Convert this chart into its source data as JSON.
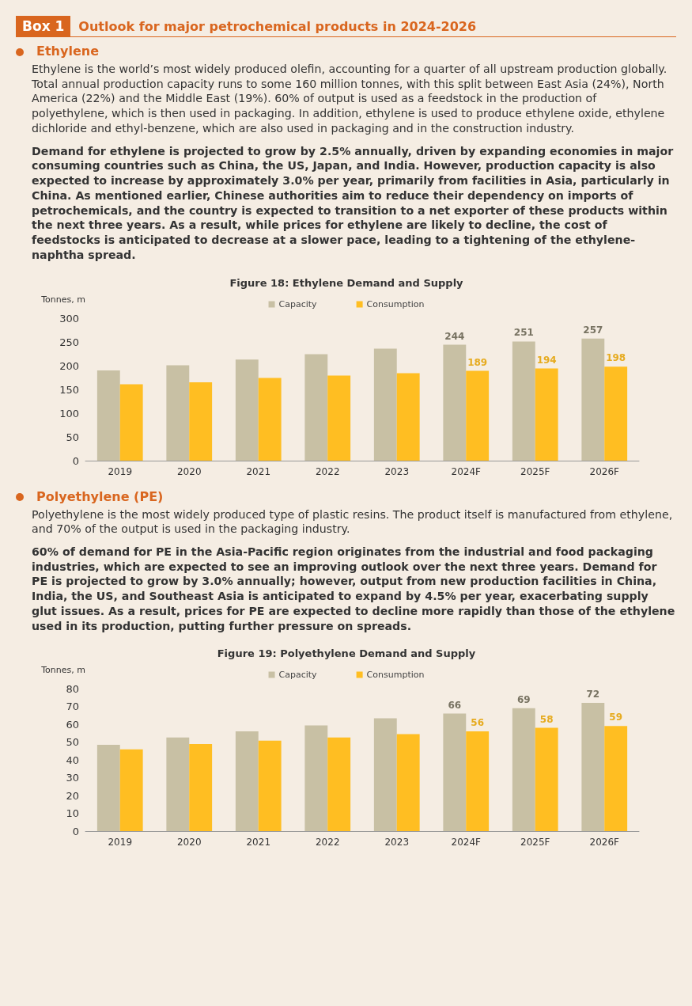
{
  "chart_data": [
    {
      "type": "bar",
      "title": "Figure 18: Ethylene Demand and Supply",
      "ylabel": "Tonnes, m",
      "annotations": [
        "Box 1",
        "Outlook for major petrochemical products in 2024-2026",
        "Ethylene",
        "Ethylene is the world’s most widely produced olefin, accounting for a quarter of all upstream production globally. Total annual production capacity runs to some 160 million tonnes, with this split between East Asia (24%), North America (22%) and the Middle East (19%). 60% of output is used as a feedstock in the production of polyethylene, which is then used in packaging. In addition, ethylene is used to produce ethylene oxide, ethylene dichloride and ethyl-benzene, which are also used in packaging and in the construction industry.",
        "Demand for ethylene is projected to grow by 2.5% annually, driven by expanding economies in major consuming countries such as China, the US, Japan, and India. However, production capacity is also expected to increase by approximately 3.0% per year, primarily from facilities in Asia, particularly in China. As mentioned earlier, Chinese authorities aim to reduce their dependency on imports of petrochemicals, and the country is expected to transition to a net exporter of these products within the next three years. As a result, while prices for ethylene are likely to decline, the cost of feedstocks is anticipated to decrease at a slower pace, leading to a tightening of the ethylene-naphtha spread."
      ],
      "categories": [
        "2019",
        "2020",
        "2021",
        "2022",
        "2023",
        "2024F",
        "2025F",
        "2026F"
      ],
      "series": [
        {
          "name": "Capacity",
          "color": "#c8c0a4",
          "values": [
            190,
            201,
            213,
            224,
            236,
            244,
            251,
            257
          ],
          "value_labels": [
            null,
            null,
            null,
            null,
            null,
            "244",
            "251",
            "257"
          ]
        },
        {
          "name": "Consumption",
          "color": "#ffbe22",
          "values": [
            161,
            165,
            174,
            179,
            184,
            189,
            194,
            198
          ],
          "value_labels": [
            null,
            null,
            null,
            null,
            null,
            "189",
            "194",
            "198"
          ]
        }
      ],
      "ylim": [
        0,
        300
      ],
      "yticks": [
        0,
        50,
        100,
        150,
        200,
        250,
        300
      ],
      "grid": false,
      "legend": "top"
    },
    {
      "type": "bar",
      "title": "Figure 19: Polyethylene Demand and Supply",
      "ylabel": "Tonnes, m",
      "annotations": [
        "Polyethylene (PE)",
        "Polyethylene is the most widely produced type of plastic resins. The product itself is manufactured from ethylene, and 70% of the output is used in the packaging industry.",
        "60% of demand for PE in the Asia-Pacific region originates from the industrial and food packaging industries, which are expected to see an improving outlook over the next three years. Demand for PE is projected to grow by 3.0% annually; however, output from new production facilities in China, India, the US, and Southeast Asia is anticipated to expand by 4.5% per year, exacerbating supply glut issues. As a result, prices for PE are expected to decline more rapidly than those of the ethylene used in its production, putting further pressure on spreads."
      ],
      "categories": [
        "2019",
        "2020",
        "2021",
        "2022",
        "2023",
        "2024F",
        "2025F",
        "2026F"
      ],
      "series": [
        {
          "name": "Capacity",
          "color": "#c8c0a4",
          "values": [
            48.5,
            52.6,
            56,
            59.3,
            63.3,
            66,
            69,
            72
          ],
          "value_labels": [
            null,
            null,
            null,
            null,
            null,
            "66",
            "69",
            "72"
          ]
        },
        {
          "name": "Consumption",
          "color": "#ffbe22",
          "values": [
            45.9,
            48.9,
            50.8,
            52.6,
            54.4,
            56,
            58,
            59
          ],
          "value_labels": [
            null,
            null,
            null,
            null,
            null,
            "56",
            "58",
            "59"
          ]
        }
      ],
      "ylim": [
        0,
        80
      ],
      "yticks": [
        0,
        10,
        20,
        30,
        40,
        50,
        60,
        70,
        80
      ],
      "grid": false,
      "legend": "top"
    }
  ]
}
